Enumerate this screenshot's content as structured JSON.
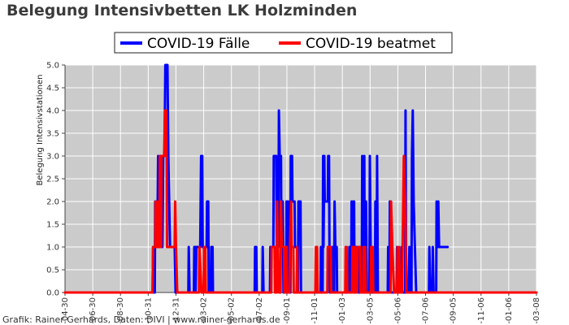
{
  "chart_data": {
    "type": "line",
    "title": "Belegung Intensivbetten LK Holzminden",
    "ylabel": "Belegung Intensivstationen",
    "xlabel": "",
    "ylim": [
      0,
      5
    ],
    "yticks": [
      "0.0",
      "0.5",
      "1.0",
      "1.5",
      "2.0",
      "2.5",
      "3.0",
      "3.5",
      "4.0",
      "4.5",
      "5.0"
    ],
    "xticks": [
      "-04-30",
      "-06-30",
      "-08-30",
      "-10-31",
      "-12-31",
      "-03-02",
      "-05-02",
      "-07-02",
      "-09-01",
      "-11-01",
      "-01-03",
      "-03-05",
      "-05-06",
      "-07-06",
      "-09-05",
      "-11-06",
      "-01-06",
      "-03-08"
    ],
    "xlim": [
      0,
      1109
    ],
    "grid": true,
    "legend_position": "top-center",
    "credit": "Grafik: Rainer Gerhards, Daten: DIVI | www.rainer-gerhards.de",
    "series": [
      {
        "name": "COVID-19 Fälle",
        "color": "#0000ff",
        "points": [
          [
            0,
            0
          ],
          [
            206,
            0
          ],
          [
            207,
            1
          ],
          [
            209,
            0
          ],
          [
            211,
            0
          ],
          [
            212,
            2
          ],
          [
            216,
            2
          ],
          [
            217,
            1
          ],
          [
            219,
            3
          ],
          [
            223,
            1
          ],
          [
            225,
            3
          ],
          [
            229,
            1
          ],
          [
            231,
            3
          ],
          [
            234,
            3
          ],
          [
            236,
            5
          ],
          [
            241,
            5
          ],
          [
            243,
            3
          ],
          [
            245,
            2
          ],
          [
            247,
            1
          ],
          [
            258,
            1
          ],
          [
            260,
            0
          ],
          [
            290,
            0
          ],
          [
            291,
            1
          ],
          [
            293,
            0
          ],
          [
            303,
            0
          ],
          [
            304,
            1
          ],
          [
            306,
            1
          ],
          [
            307,
            0
          ],
          [
            309,
            1
          ],
          [
            318,
            1
          ],
          [
            320,
            3
          ],
          [
            323,
            3
          ],
          [
            324,
            1
          ],
          [
            333,
            1
          ],
          [
            334,
            2
          ],
          [
            337,
            2
          ],
          [
            338,
            0
          ],
          [
            343,
            0
          ],
          [
            344,
            1
          ],
          [
            347,
            1
          ],
          [
            348,
            0
          ],
          [
            446,
            0
          ],
          [
            447,
            1
          ],
          [
            450,
            1
          ],
          [
            451,
            0
          ],
          [
            464,
            0
          ],
          [
            465,
            1
          ],
          [
            467,
            0
          ],
          [
            482,
            0
          ],
          [
            483,
            1
          ],
          [
            490,
            1
          ],
          [
            491,
            3
          ],
          [
            497,
            3
          ],
          [
            498,
            1
          ],
          [
            502,
            1
          ],
          [
            503,
            4
          ],
          [
            505,
            3
          ],
          [
            508,
            3
          ],
          [
            509,
            1
          ],
          [
            512,
            2
          ],
          [
            514,
            0
          ],
          [
            520,
            0
          ],
          [
            521,
            2
          ],
          [
            525,
            2
          ],
          [
            526,
            0
          ],
          [
            530,
            0
          ],
          [
            531,
            3
          ],
          [
            534,
            3
          ],
          [
            535,
            2
          ],
          [
            540,
            2
          ],
          [
            541,
            1
          ],
          [
            546,
            1
          ],
          [
            547,
            0
          ],
          [
            548,
            0
          ],
          [
            549,
            2
          ],
          [
            554,
            2
          ],
          [
            555,
            0
          ],
          [
            601,
            0
          ],
          [
            602,
            1
          ],
          [
            604,
            0
          ],
          [
            606,
            0
          ],
          [
            607,
            3
          ],
          [
            608,
            1
          ],
          [
            610,
            3
          ],
          [
            611,
            2
          ],
          [
            618,
            2
          ],
          [
            619,
            3
          ],
          [
            621,
            3
          ],
          [
            622,
            1
          ],
          [
            623,
            0
          ],
          [
            628,
            0
          ],
          [
            629,
            1
          ],
          [
            630,
            0
          ],
          [
            633,
            0
          ],
          [
            634,
            2
          ],
          [
            636,
            1
          ],
          [
            639,
            1
          ],
          [
            640,
            0
          ],
          [
            668,
            0
          ],
          [
            669,
            1
          ],
          [
            671,
            0
          ],
          [
            673,
            0
          ],
          [
            674,
            2
          ],
          [
            677,
            1
          ],
          [
            678,
            2
          ],
          [
            680,
            2
          ],
          [
            681,
            0
          ],
          [
            684,
            0
          ],
          [
            685,
            1
          ],
          [
            690,
            1
          ],
          [
            691,
            0
          ],
          [
            698,
            0
          ],
          [
            699,
            3
          ],
          [
            702,
            0
          ],
          [
            704,
            3
          ],
          [
            705,
            0
          ],
          [
            707,
            0
          ],
          [
            708,
            2
          ],
          [
            710,
            0
          ],
          [
            716,
            0
          ],
          [
            717,
            3
          ],
          [
            719,
            1
          ],
          [
            721,
            0
          ],
          [
            729,
            0
          ],
          [
            730,
            2
          ],
          [
            733,
            0
          ],
          [
            734,
            3
          ],
          [
            736,
            0
          ],
          [
            759,
            0
          ],
          [
            760,
            1
          ],
          [
            761,
            0
          ],
          [
            763,
            0
          ],
          [
            764,
            2
          ],
          [
            765,
            0
          ],
          [
            780,
            0
          ],
          [
            781,
            1
          ],
          [
            783,
            0
          ],
          [
            791,
            0
          ],
          [
            792,
            1
          ],
          [
            793,
            0
          ],
          [
            800,
            0
          ],
          [
            801,
            4
          ],
          [
            802,
            1
          ],
          [
            804,
            0
          ],
          [
            809,
            0
          ],
          [
            810,
            1
          ],
          [
            812,
            0
          ],
          [
            815,
            0
          ],
          [
            816,
            3
          ],
          [
            818,
            4
          ],
          [
            820,
            2
          ],
          [
            823,
            1
          ],
          [
            826,
            0
          ],
          [
            856,
            0
          ],
          [
            857,
            1
          ],
          [
            859,
            0
          ],
          [
            864,
            0
          ],
          [
            865,
            1
          ],
          [
            867,
            0
          ],
          [
            873,
            0
          ],
          [
            874,
            2
          ],
          [
            877,
            1
          ],
          [
            878,
            2
          ],
          [
            880,
            1
          ],
          [
            900,
            1
          ]
        ]
      },
      {
        "name": "COVID-19 beatmet",
        "color": "#ff0000",
        "points": [
          [
            0,
            0
          ],
          [
            206,
            0
          ],
          [
            207,
            1
          ],
          [
            212,
            1
          ],
          [
            213,
            2
          ],
          [
            215,
            1
          ],
          [
            217,
            1
          ],
          [
            218,
            2
          ],
          [
            219,
            1
          ],
          [
            222,
            1
          ],
          [
            223,
            3
          ],
          [
            226,
            1
          ],
          [
            227,
            3
          ],
          [
            233,
            3
          ],
          [
            235,
            4
          ],
          [
            238,
            4
          ],
          [
            239,
            3
          ],
          [
            240,
            1
          ],
          [
            258,
            1
          ],
          [
            259,
            2
          ],
          [
            261,
            1
          ],
          [
            264,
            0
          ],
          [
            315,
            0
          ],
          [
            316,
            1
          ],
          [
            321,
            0
          ],
          [
            326,
            0
          ],
          [
            327,
            1
          ],
          [
            330,
            1
          ],
          [
            331,
            0
          ],
          [
            485,
            0
          ],
          [
            486,
            1
          ],
          [
            493,
            1
          ],
          [
            494,
            0
          ],
          [
            498,
            0
          ],
          [
            499,
            2
          ],
          [
            501,
            1
          ],
          [
            503,
            0
          ],
          [
            507,
            0
          ],
          [
            508,
            2
          ],
          [
            510,
            1
          ],
          [
            515,
            1
          ],
          [
            516,
            0
          ],
          [
            518,
            0
          ],
          [
            519,
            1
          ],
          [
            521,
            1
          ],
          [
            522,
            0
          ],
          [
            528,
            0
          ],
          [
            529,
            1
          ],
          [
            532,
            2
          ],
          [
            533,
            1
          ],
          [
            537,
            1
          ],
          [
            538,
            0
          ],
          [
            545,
            0
          ],
          [
            546,
            1
          ],
          [
            547,
            0
          ],
          [
            589,
            0
          ],
          [
            590,
            1
          ],
          [
            593,
            1
          ],
          [
            594,
            0
          ],
          [
            617,
            0
          ],
          [
            618,
            1
          ],
          [
            625,
            1
          ],
          [
            626,
            0
          ],
          [
            659,
            0
          ],
          [
            660,
            1
          ],
          [
            663,
            1
          ],
          [
            664,
            0
          ],
          [
            675,
            0
          ],
          [
            676,
            1
          ],
          [
            678,
            1
          ],
          [
            679,
            0
          ],
          [
            681,
            0
          ],
          [
            682,
            1
          ],
          [
            683,
            0
          ],
          [
            687,
            0
          ],
          [
            688,
            1
          ],
          [
            694,
            1
          ],
          [
            695,
            0
          ],
          [
            701,
            0
          ],
          [
            702,
            1
          ],
          [
            705,
            0
          ],
          [
            706,
            1
          ],
          [
            707,
            0
          ],
          [
            719,
            0
          ],
          [
            720,
            1
          ],
          [
            724,
            1
          ],
          [
            725,
            0
          ],
          [
            766,
            0
          ],
          [
            767,
            2
          ],
          [
            770,
            1
          ],
          [
            774,
            0
          ],
          [
            781,
            0
          ],
          [
            782,
            1
          ],
          [
            783,
            0
          ],
          [
            785,
            0
          ],
          [
            786,
            1
          ],
          [
            788,
            0
          ],
          [
            793,
            0
          ],
          [
            794,
            1
          ],
          [
            797,
            3
          ],
          [
            800,
            2
          ],
          [
            803,
            0
          ],
          [
            1109,
            0
          ]
        ]
      }
    ]
  }
}
